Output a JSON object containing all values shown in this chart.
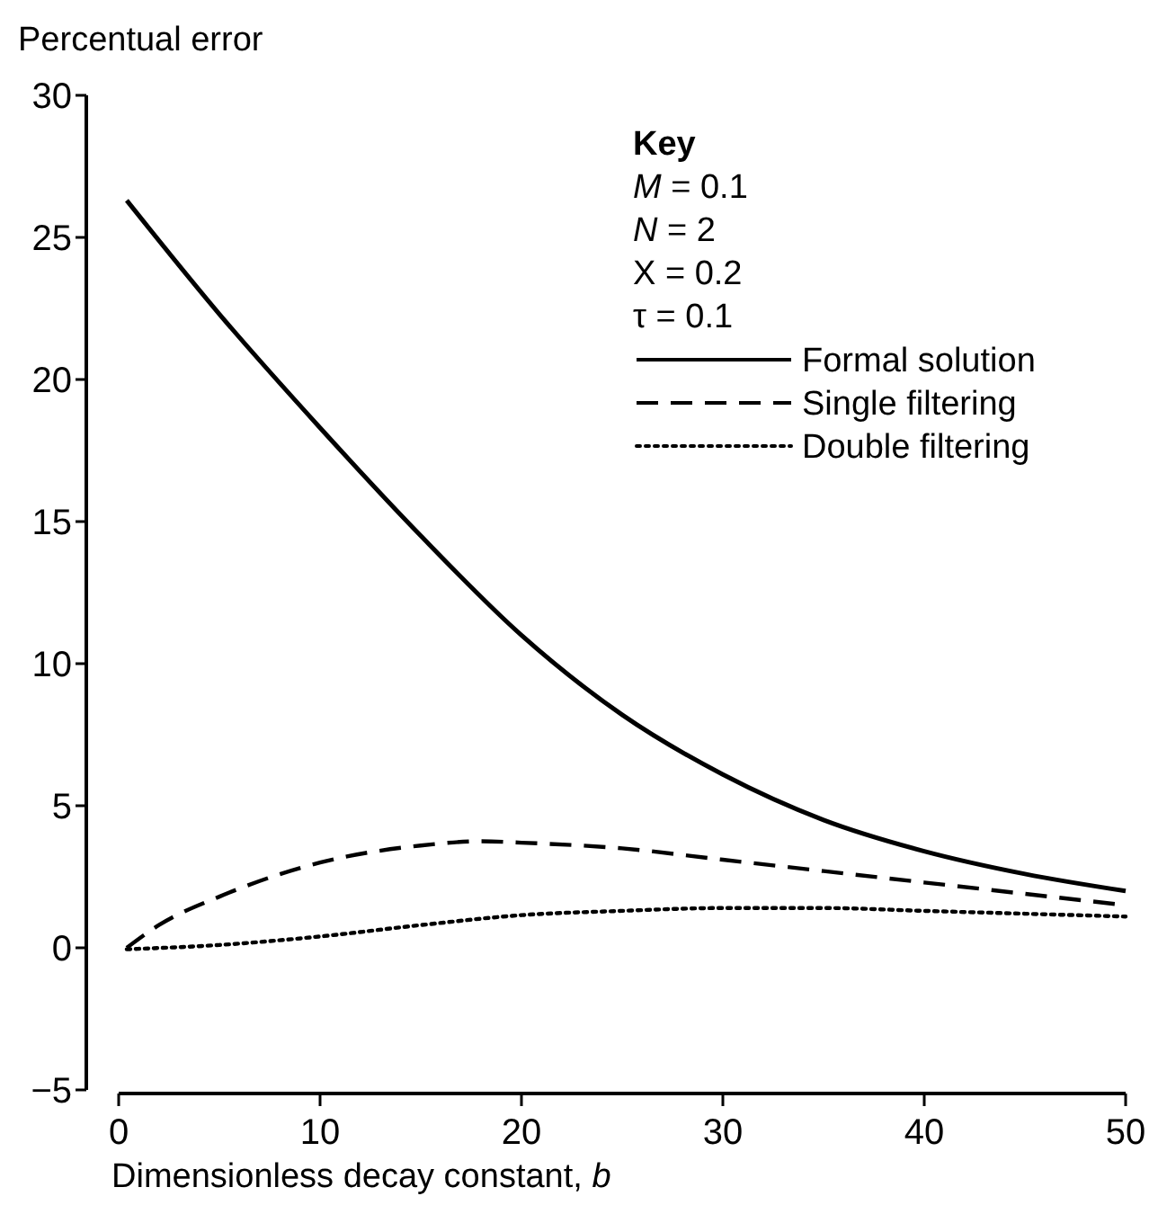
{
  "chart_data": {
    "type": "line",
    "ylabel": "Percentual error",
    "xlabel": "Dimensionless decay constant, b",
    "legend_title": "Key",
    "annotations": [
      "M = 0.1",
      "N = 2",
      "X = 0.2",
      "τ = 0.1"
    ],
    "xlim": [
      0,
      50
    ],
    "xticks": [
      0,
      10,
      20,
      30,
      40,
      50
    ],
    "ylim": [
      -5,
      30
    ],
    "yticks": [
      -5,
      0,
      5,
      10,
      15,
      20,
      25,
      30
    ],
    "grid": false,
    "legend": "top right",
    "marker": "none",
    "series": [
      {
        "name": "Formal solution",
        "color": "#000000",
        "line_style": "solid",
        "x": [
          0.4,
          5,
          10,
          15,
          20,
          25,
          30,
          35,
          40,
          45,
          50
        ],
        "values": [
          26.3,
          22.3,
          18.3,
          14.5,
          11.0,
          8.2,
          6.1,
          4.5,
          3.4,
          2.6,
          2.0
        ]
      },
      {
        "name": "Single filtering",
        "color": "#000000",
        "line_style": "dashed",
        "x": [
          0.4,
          2,
          5,
          10,
          15,
          18,
          20,
          25,
          30,
          35,
          40,
          45,
          50
        ],
        "values": [
          0,
          0.8,
          1.8,
          3.0,
          3.6,
          3.75,
          3.7,
          3.5,
          3.1,
          2.7,
          2.3,
          1.9,
          1.5
        ]
      },
      {
        "name": "Double filtering",
        "color": "#000000",
        "line_style": "dotted",
        "x": [
          0.4,
          5,
          10,
          15,
          20,
          25,
          30,
          35,
          40,
          45,
          50
        ],
        "values": [
          -0.05,
          0.1,
          0.4,
          0.8,
          1.15,
          1.3,
          1.4,
          1.4,
          1.3,
          1.2,
          1.1
        ]
      }
    ]
  }
}
